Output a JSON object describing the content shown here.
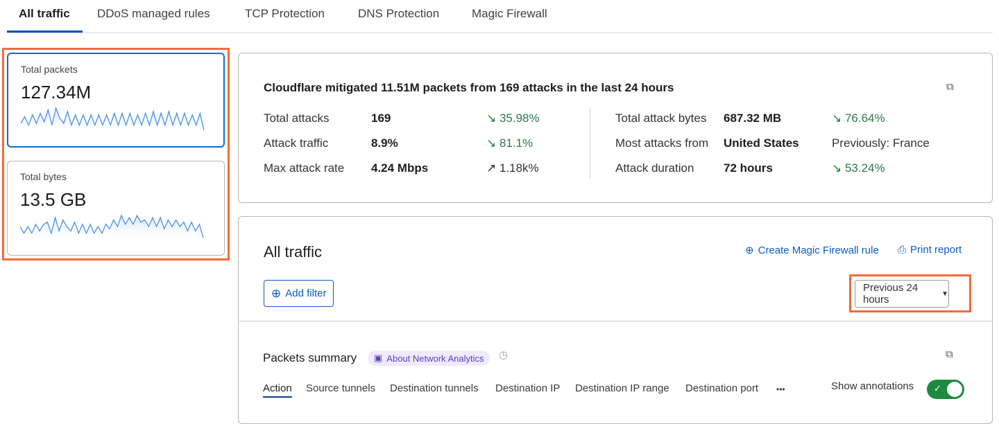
{
  "tabs": [
    {
      "label": "All traffic",
      "active": true
    },
    {
      "label": "DDoS managed rules"
    },
    {
      "label": "TCP Protection"
    },
    {
      "label": "DNS Protection"
    },
    {
      "label": "Magic Firewall"
    }
  ],
  "metrics": [
    {
      "label": "Total packets",
      "value": "127.34M",
      "selected": true,
      "spark": [
        4,
        8,
        3,
        9,
        4,
        10,
        5,
        12,
        3,
        13,
        7,
        4,
        11,
        3,
        9,
        3,
        9,
        3,
        9,
        3,
        9,
        3,
        9,
        3,
        10,
        3,
        10,
        3,
        10,
        3,
        9,
        3,
        10,
        3,
        11,
        3,
        10,
        3,
        11,
        3,
        10,
        3,
        10,
        3,
        9,
        3,
        10,
        0
      ]
    },
    {
      "label": "Total bytes",
      "value": "13.5 GB",
      "selected": false,
      "spark": [
        5,
        2,
        5,
        2,
        6,
        3,
        6,
        7,
        2,
        9,
        3,
        8,
        5,
        3,
        7,
        2,
        6,
        2,
        6,
        2,
        5,
        2,
        6,
        4,
        8,
        5,
        10,
        6,
        9,
        6,
        10,
        7,
        8,
        5,
        9,
        5,
        9,
        4,
        8,
        5,
        8,
        5,
        7,
        3,
        7,
        3,
        6,
        0
      ]
    }
  ],
  "summary": {
    "heading": "Cloudflare mitigated 11.51M packets from 169 attacks in the last 24 hours",
    "left": [
      {
        "label": "Total attacks",
        "value": "169",
        "change": "35.98%",
        "dir": "down"
      },
      {
        "label": "Attack traffic",
        "value": "8.9%",
        "change": "81.1%",
        "dir": "down"
      },
      {
        "label": "Max attack rate",
        "value": "4.24 Mbps",
        "change": "1.18k%",
        "dir": "up"
      }
    ],
    "right": [
      {
        "label": "Total attack bytes",
        "value": "687.32 MB",
        "change": "76.64%",
        "dir": "down"
      },
      {
        "label": "Most attacks from",
        "value": "United States",
        "change": "Previously: France",
        "dir": "none"
      },
      {
        "label": "Attack duration",
        "value": "72 hours",
        "change": "53.24%",
        "dir": "down"
      }
    ]
  },
  "main": {
    "title": "All traffic",
    "create_rule": "Create Magic Firewall rule",
    "print": "Print report",
    "add_filter": "Add filter",
    "time_range": "Previous 24 hours"
  },
  "packets": {
    "title": "Packets summary",
    "about": "About Network Analytics",
    "tabs": [
      "Action",
      "Source tunnels",
      "Destination tunnels",
      "Destination IP",
      "Destination IP range",
      "Destination port"
    ],
    "more": "•••",
    "annotations_label": "Show annotations",
    "annotations_on": true
  },
  "colors": {
    "accent": "#0051c3",
    "highlight": "#f26b3a",
    "positive": "#2a7a46",
    "toggle": "#1f8a3f"
  }
}
